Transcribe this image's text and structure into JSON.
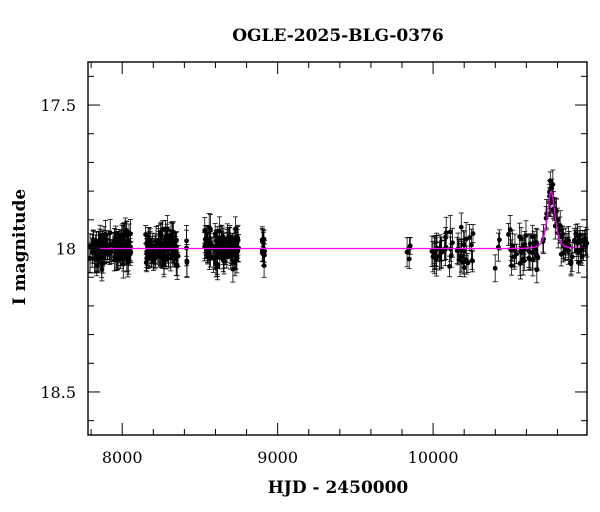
{
  "chart_data": {
    "type": "scatter",
    "title": "OGLE-2025-BLG-0376",
    "xlabel": "HJD - 2450000",
    "ylabel": "I magnitude",
    "xlim": [
      7780,
      10990
    ],
    "ylim": [
      18.65,
      17.35
    ],
    "y_inverted": true,
    "x_ticks": [
      8000,
      9000,
      10000
    ],
    "x_tick_labels": [
      "8000",
      "9000",
      "10000"
    ],
    "y_ticks": [
      17.5,
      18,
      18.5
    ],
    "y_tick_labels": [
      "17.5",
      "18",
      "18.5"
    ],
    "grid": false,
    "colors": {
      "data": "#000000",
      "model": "#ff00ff"
    },
    "observation_seasons": [
      {
        "start": 7790,
        "end": 8060,
        "n": 120,
        "mag": 18.0,
        "scatter": 0.03,
        "err": 0.04
      },
      {
        "start": 8150,
        "end": 8360,
        "n": 110,
        "mag": 18.0,
        "scatter": 0.03,
        "err": 0.04
      },
      {
        "start": 8400,
        "end": 8420,
        "n": 4,
        "mag": 18.0,
        "scatter": 0.04,
        "err": 0.05
      },
      {
        "start": 8530,
        "end": 8750,
        "n": 110,
        "mag": 18.0,
        "scatter": 0.03,
        "err": 0.04
      },
      {
        "start": 8900,
        "end": 8920,
        "n": 12,
        "mag": 18.0,
        "scatter": 0.025,
        "err": 0.035
      },
      {
        "start": 9810,
        "end": 9860,
        "n": 4,
        "mag": 18.02,
        "scatter": 0.03,
        "err": 0.04
      },
      {
        "start": 9990,
        "end": 10260,
        "n": 45,
        "mag": 18.0,
        "scatter": 0.035,
        "err": 0.045
      },
      {
        "start": 10390,
        "end": 10680,
        "n": 40,
        "mag": 18.0,
        "scatter": 0.035,
        "err": 0.045
      },
      {
        "start": 10700,
        "end": 10990,
        "n": 60,
        "mag": 18.0,
        "scatter": 0.03,
        "err": 0.04
      }
    ],
    "model": {
      "type": "microlensing",
      "baseline": 18.0,
      "peak_time": 10760,
      "peak_mag": 17.8,
      "tE": 25
    }
  }
}
